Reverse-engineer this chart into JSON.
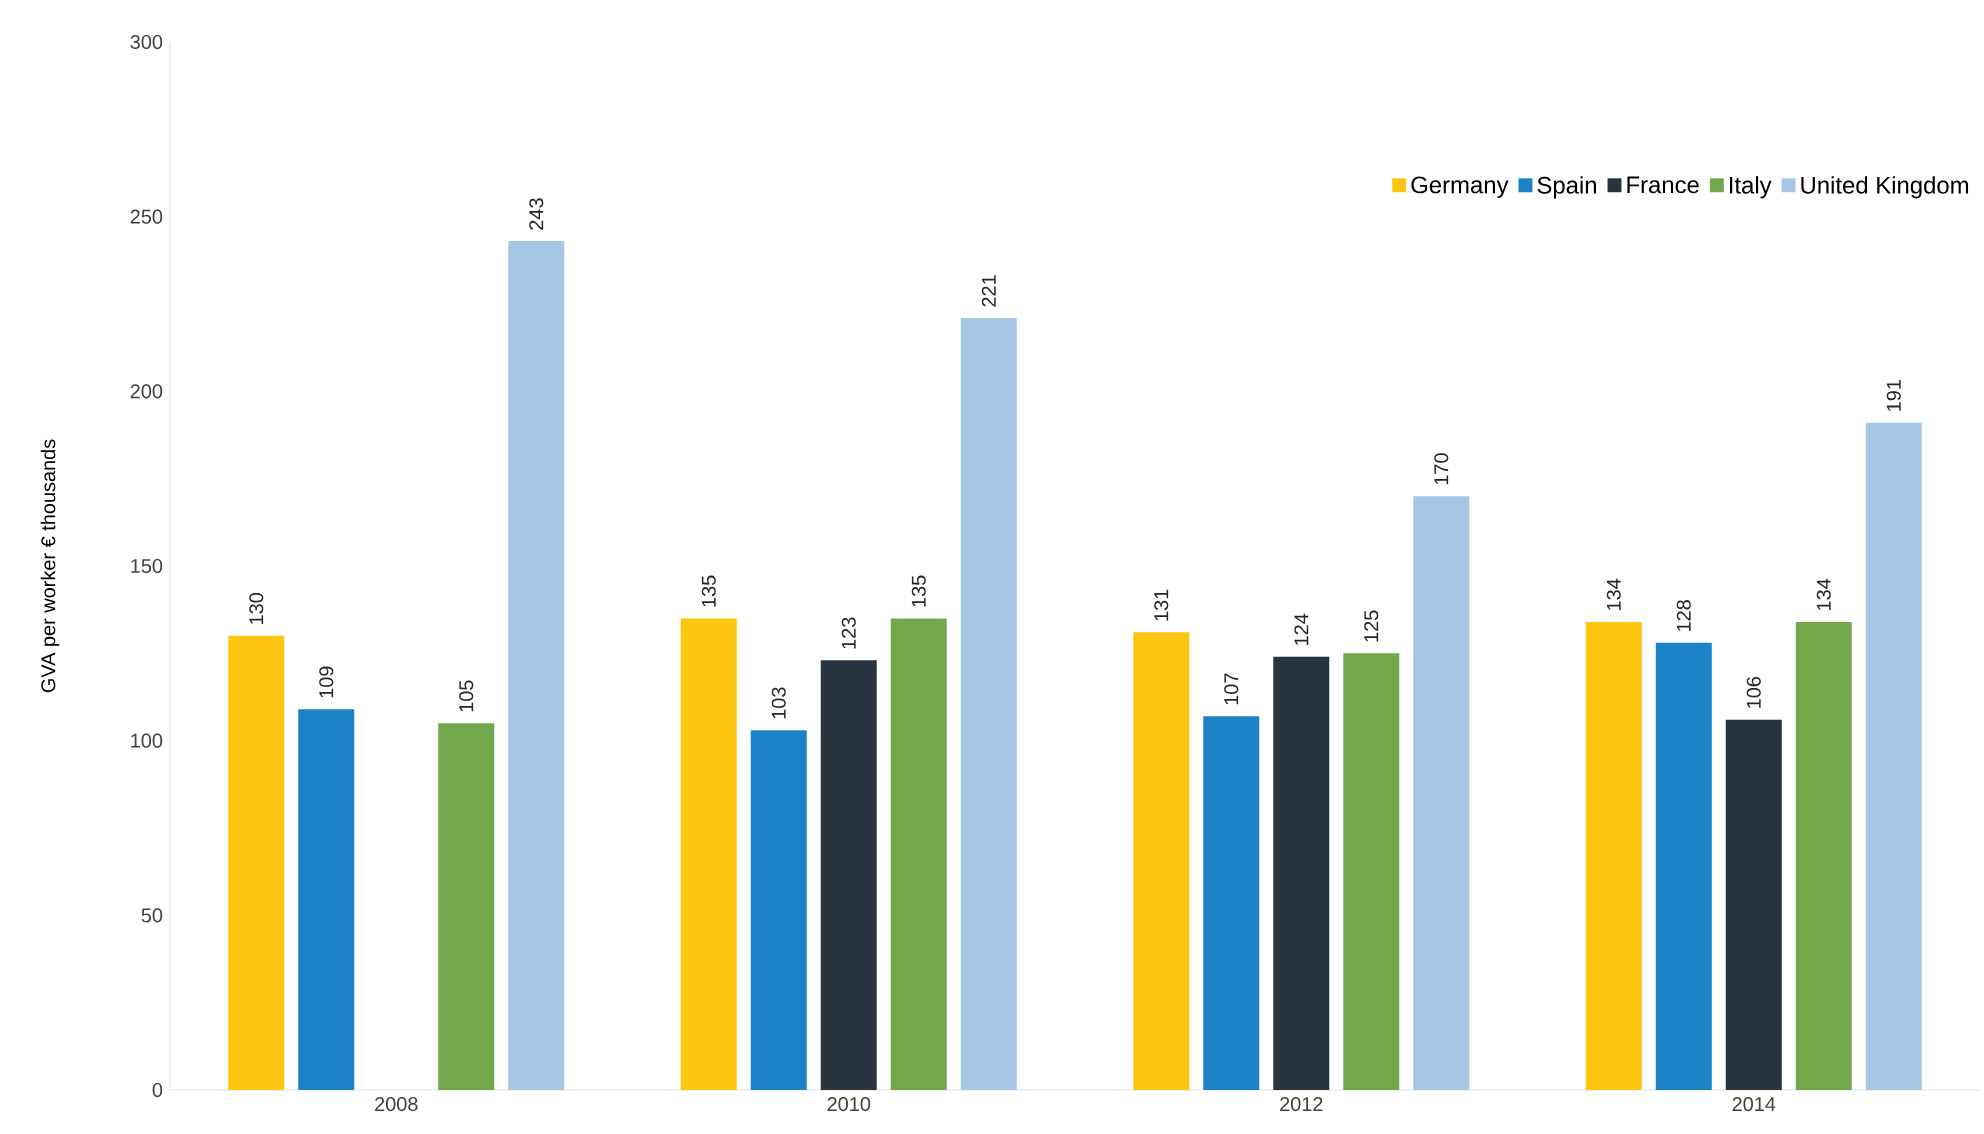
{
  "chart_data": {
    "type": "bar",
    "ylabel": "GVA  per worker € thousands",
    "categories": [
      "2008",
      "2010",
      "2012",
      "2014"
    ],
    "series": [
      {
        "name": "Germany",
        "color": "#fcc50f",
        "values": [
          130,
          135,
          131,
          134
        ]
      },
      {
        "name": "Spain",
        "color": "#1b82c6",
        "values": [
          109,
          103,
          107,
          128
        ]
      },
      {
        "name": "France",
        "color": "#283541",
        "values": [
          null,
          123,
          124,
          106
        ]
      },
      {
        "name": "Italy",
        "color": "#72a84c",
        "values": [
          105,
          135,
          125,
          134
        ]
      },
      {
        "name": "United Kingdom",
        "color": "#a6c6e6",
        "values": [
          243,
          221,
          170,
          191
        ]
      }
    ],
    "ylim": [
      0,
      300
    ],
    "yticks": [
      0,
      50,
      100,
      150,
      200,
      250,
      300
    ],
    "data_labels": true,
    "legend": "top right",
    "grid": false
  }
}
